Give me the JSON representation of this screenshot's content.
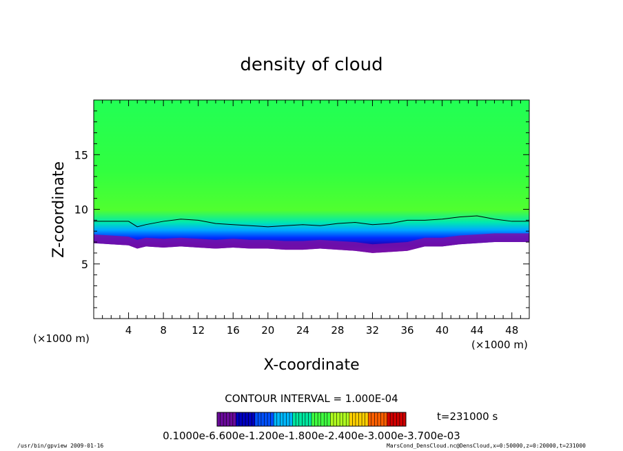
{
  "chart_data": {
    "type": "heatmap",
    "title": "density of cloud",
    "xlabel": "X-coordinate",
    "ylabel": "Z-coordinate",
    "x_unit_left": "(×1000 m)",
    "x_unit_right": "(×1000 m)",
    "xlim": [
      0,
      50
    ],
    "ylim": [
      0,
      20
    ],
    "x_ticks": [
      4,
      8,
      12,
      16,
      20,
      24,
      28,
      32,
      36,
      40,
      44,
      48
    ],
    "x_tick_labels": [
      "4",
      "8",
      "12",
      "16",
      "20",
      "24",
      "28",
      "32",
      "36",
      "40",
      "44",
      "48"
    ],
    "y_ticks": [
      5,
      10,
      15
    ],
    "y_tick_labels": [
      "5",
      "10",
      "15"
    ],
    "contour_interval_text": "CONTOUR INTERVAL = 1.000E-04",
    "time_label": "t=231000 s",
    "colorbar_labels_text": "0.1000e-6.600e-1.200e-1.800e-2.400e-3.000e-3.700e-03",
    "colorbar_colors": [
      "#6a0a9a",
      "#0000c0",
      "#0050ff",
      "#00b8ff",
      "#00e8a0",
      "#40ff40",
      "#b0ff20",
      "#ffd000",
      "#ff6000",
      "#d00000"
    ],
    "cloud_profile": {
      "x": [
        0,
        2,
        4,
        5,
        6,
        8,
        10,
        12,
        14,
        16,
        18,
        20,
        22,
        24,
        26,
        28,
        30,
        32,
        34,
        36,
        38,
        40,
        42,
        44,
        46,
        48,
        50
      ],
      "contour_top_z": [
        8.9,
        8.9,
        8.9,
        8.4,
        8.6,
        8.9,
        9.1,
        9.0,
        8.7,
        8.6,
        8.5,
        8.4,
        8.5,
        8.6,
        8.5,
        8.7,
        8.8,
        8.6,
        8.7,
        9.0,
        9.0,
        9.1,
        9.3,
        9.4,
        9.1,
        8.9,
        8.9
      ],
      "cloud_base_z": [
        6.9,
        6.8,
        6.7,
        6.4,
        6.6,
        6.5,
        6.6,
        6.5,
        6.4,
        6.5,
        6.4,
        6.4,
        6.3,
        6.3,
        6.4,
        6.3,
        6.2,
        6.0,
        6.1,
        6.2,
        6.6,
        6.6,
        6.8,
        6.9,
        7.0,
        7.0,
        7.0
      ]
    },
    "grid": false,
    "legend_placement": "bottom-center colorbar"
  },
  "footer": {
    "left": "/usr/bin/gpview   2009-01-16",
    "right": "MarsCond_DensCloud.nc@DensCloud,x=0:50000,z=0:20000,t=231000"
  }
}
